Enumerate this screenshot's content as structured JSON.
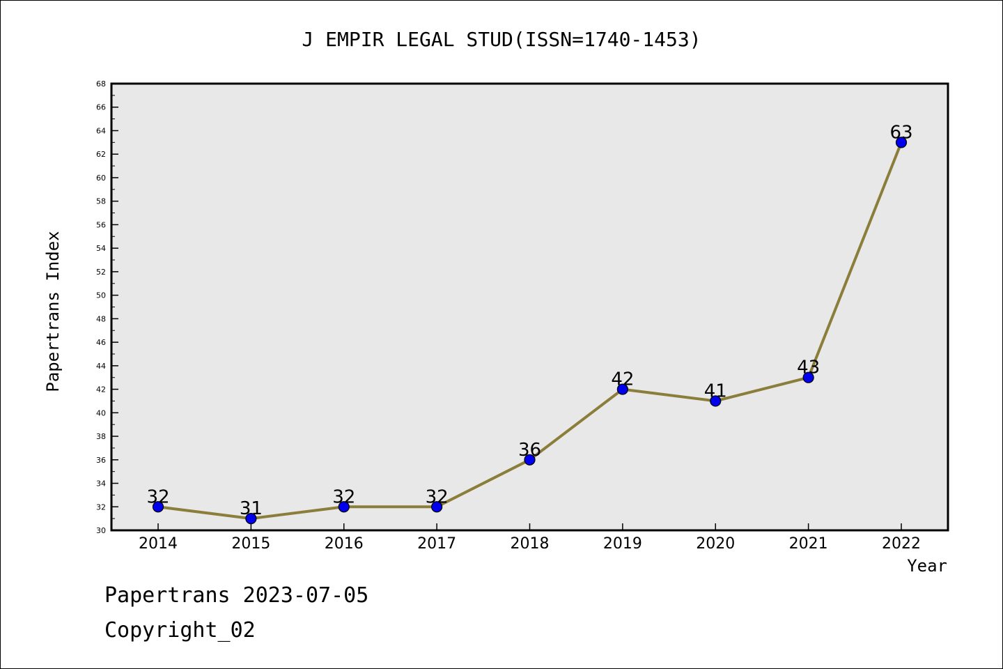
{
  "chart_data": {
    "type": "line",
    "title": "J EMPIR LEGAL STUD(ISSN=1740-1453)",
    "xlabel": "Year",
    "ylabel": "Papertrans Index",
    "categories": [
      "2014",
      "2015",
      "2016",
      "2017",
      "2018",
      "2019",
      "2020",
      "2021",
      "2022"
    ],
    "series": [
      {
        "values": [
          32,
          31,
          32,
          32,
          36,
          42,
          41,
          43,
          63
        ]
      }
    ],
    "ylim": [
      30,
      68
    ],
    "yticks": [
      "30",
      "32",
      "34",
      "36",
      "38",
      "40",
      "42",
      "44",
      "46",
      "48",
      "50",
      "52",
      "54",
      "56",
      "58",
      "60",
      "62",
      "64",
      "66",
      "68"
    ],
    "data_labels": [
      "32",
      "31",
      "32",
      "32",
      "36",
      "42",
      "41",
      "43",
      "63"
    ],
    "grid": false,
    "colors": {
      "line": "#8B7D3A",
      "marker": "#0000EE",
      "plot_bg": "#E8E8E8"
    }
  },
  "footer": {
    "line1": "Papertrans 2023-07-05",
    "line2": "Copyright_02"
  }
}
